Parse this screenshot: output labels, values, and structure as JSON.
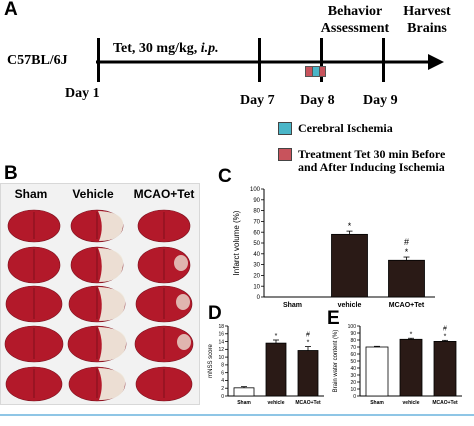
{
  "panel_a": {
    "label": "A",
    "strain": "C57BL/6J",
    "treatment_prefix": "Tet, 30 mg/kg, ",
    "treatment_route": "i.p.",
    "top_labels": {
      "behavior_line1": "Behavior",
      "behavior_line2": "Assessment",
      "harvest_line1": "Harvest",
      "harvest_line2": "Brains"
    },
    "days": [
      "Day 1",
      "Day 7",
      "Day 8",
      "Day 9"
    ],
    "legend": [
      {
        "color": "#4ab6c8",
        "text_line1": "Cerebral Ischemia",
        "text_line2": ""
      },
      {
        "color": "#c8535c",
        "text_line1": "Treatment Tet 30 min Before",
        "text_line2": "and After Inducing Ischemia"
      }
    ]
  },
  "panel_b": {
    "label": "B",
    "columns": [
      "Sham",
      "Vehicle",
      "MCAO+Tet"
    ],
    "rows": 5,
    "tissue_color": "#b3192a",
    "infarct_color": "#efe9dc"
  },
  "panel_c": {
    "label": "C",
    "ylabel": "Infarct volume (%)",
    "yticks": [
      "0",
      "10",
      "20",
      "30",
      "40",
      "50",
      "60",
      "70",
      "80",
      "90",
      "100"
    ]
  },
  "panel_d": {
    "label": "D",
    "ylabel": "mNSS score",
    "yticks": [
      "0",
      "2",
      "4",
      "6",
      "8",
      "10",
      "12",
      "14",
      "16",
      "18"
    ]
  },
  "panel_e": {
    "label": "E",
    "ylabel": "Brain water content (%)",
    "yticks": [
      "0",
      "10",
      "20",
      "30",
      "40",
      "50",
      "60",
      "70",
      "80",
      "90",
      "100"
    ]
  },
  "chart_data": [
    {
      "type": "bar",
      "panel": "C",
      "categories": [
        "Sham",
        "vehicle",
        "MCAO+Tet"
      ],
      "values": [
        0,
        58,
        34
      ],
      "errors": [
        0,
        3,
        3
      ],
      "fills": [
        "#2a1a16",
        "#2a1a16",
        "#2a1a16"
      ],
      "annotations": [
        "",
        "*",
        "#\n*"
      ],
      "ylabel": "Infarct volume (%)",
      "ylim": [
        0,
        100
      ]
    },
    {
      "type": "bar",
      "panel": "D",
      "categories": [
        "Sham",
        "vehicle",
        "MCAO+Tet"
      ],
      "values": [
        2.1,
        13.6,
        11.7
      ],
      "errors": [
        0.3,
        0.8,
        1.0
      ],
      "fills": [
        "#ffffff",
        "#2a1a16",
        "#2a1a16"
      ],
      "annotations": [
        "",
        "*",
        "#\n*"
      ],
      "ylabel": "mNSS score",
      "ylim": [
        0,
        18
      ]
    },
    {
      "type": "bar",
      "panel": "E",
      "categories": [
        "Sham",
        "vehicle",
        "MCAO+Tet"
      ],
      "values": [
        70,
        81,
        78
      ],
      "errors": [
        1,
        1.5,
        1.5
      ],
      "fills": [
        "#ffffff",
        "#2a1a16",
        "#2a1a16"
      ],
      "annotations": [
        "",
        "*",
        "#\n*"
      ],
      "ylabel": "Brain water content (%)",
      "ylim": [
        0,
        100
      ]
    }
  ]
}
